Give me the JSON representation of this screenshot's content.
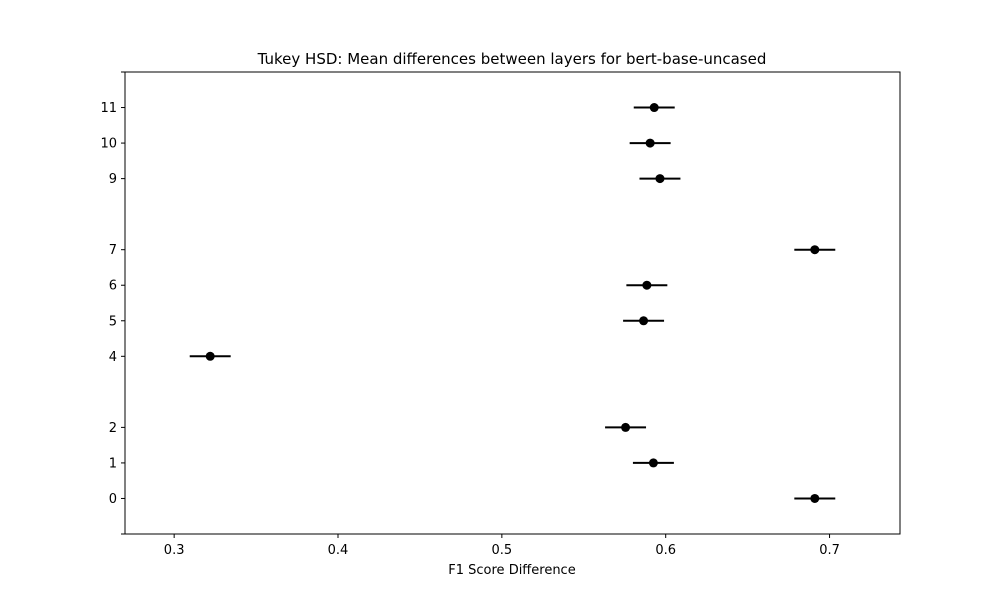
{
  "chart_data": {
    "type": "scatter",
    "title": "Tukey HSD: Mean differences between layers for bert-base-uncased",
    "xlabel": "F1 Score Difference",
    "ylabel": "",
    "xlim": [
      0.27,
      0.743
    ],
    "x_ticks": [
      "0.3",
      "0.4",
      "0.5",
      "0.6",
      "0.7"
    ],
    "x_tick_values": [
      0.3,
      0.4,
      0.5,
      0.6,
      0.7
    ],
    "y_range": [
      -1,
      12
    ],
    "y_ticks": [
      "0",
      "1",
      "2",
      "4",
      "5",
      "6",
      "7",
      "9",
      "10",
      "11"
    ],
    "y_tick_values": [
      0,
      1,
      2,
      4,
      5,
      6,
      7,
      9,
      10,
      11
    ],
    "extra_y_ticks_unlabeled": [
      -1,
      12
    ],
    "grid": false,
    "marker_color": "#000000",
    "points": [
      {
        "layer": "0",
        "y": 0,
        "mean": 0.691,
        "half_interval": 0.0125
      },
      {
        "layer": "1",
        "y": 1,
        "mean": 0.5925,
        "half_interval": 0.0125
      },
      {
        "layer": "2",
        "y": 2,
        "mean": 0.5755,
        "half_interval": 0.0125
      },
      {
        "layer": "4",
        "y": 4,
        "mean": 0.322,
        "half_interval": 0.0125
      },
      {
        "layer": "5",
        "y": 5,
        "mean": 0.5865,
        "half_interval": 0.0125
      },
      {
        "layer": "6",
        "y": 6,
        "mean": 0.5885,
        "half_interval": 0.0125
      },
      {
        "layer": "7",
        "y": 7,
        "mean": 0.691,
        "half_interval": 0.0125
      },
      {
        "layer": "9",
        "y": 9,
        "mean": 0.5965,
        "half_interval": 0.0125
      },
      {
        "layer": "10",
        "y": 10,
        "mean": 0.5905,
        "half_interval": 0.0125
      },
      {
        "layer": "11",
        "y": 11,
        "mean": 0.593,
        "half_interval": 0.0125
      }
    ]
  }
}
